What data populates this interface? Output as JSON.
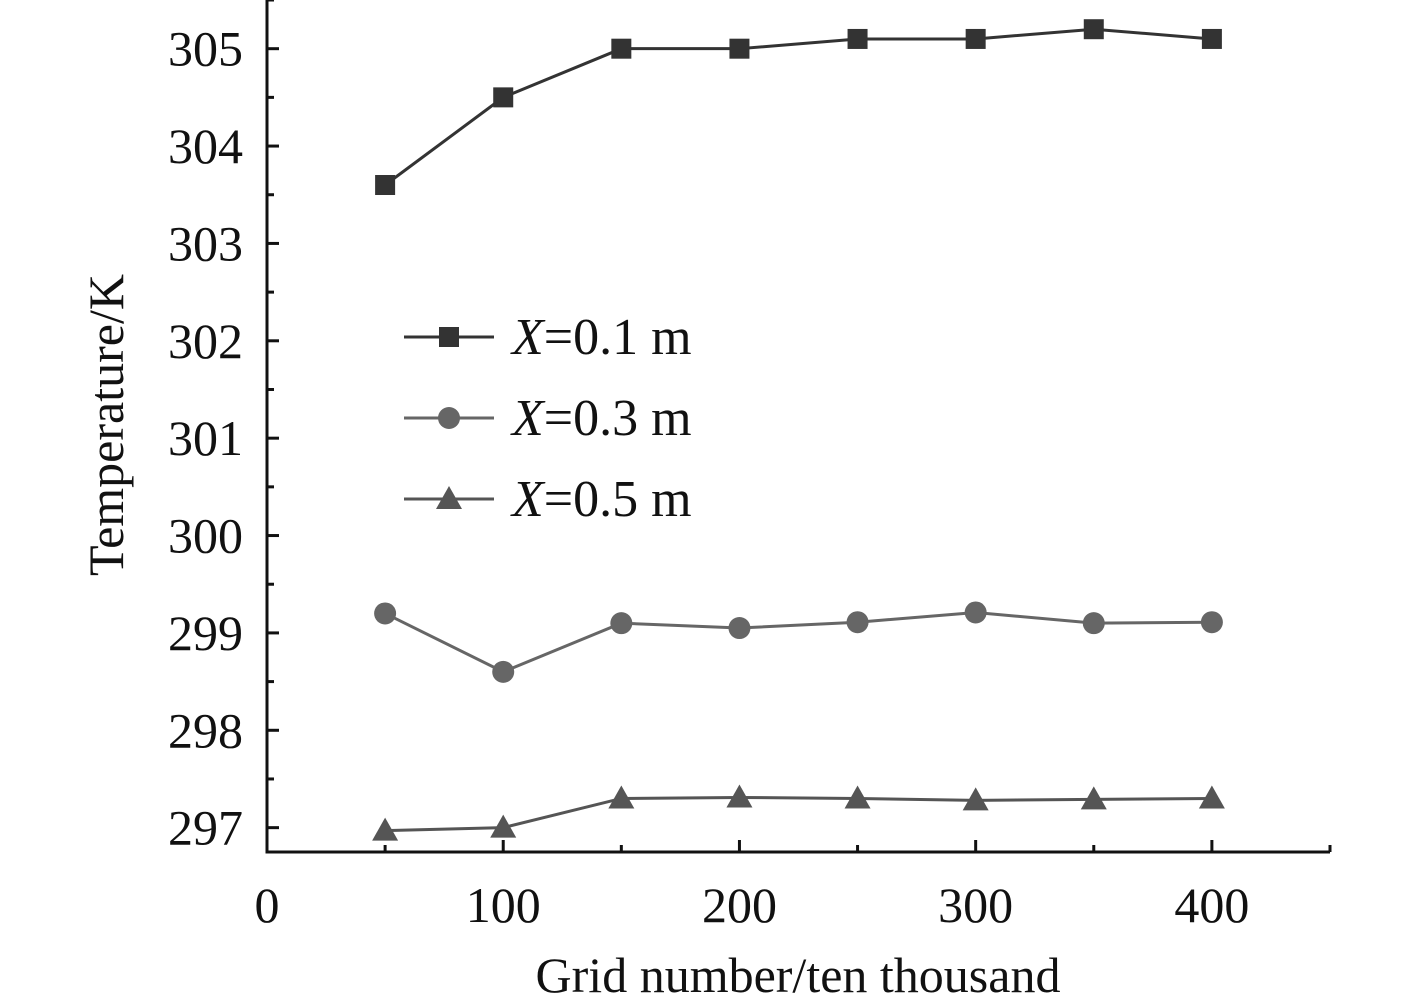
{
  "chart_data": {
    "type": "line",
    "title": "",
    "xlabel": "Grid number/ten thousand",
    "ylabel": "Temperature/K",
    "xlim": [
      0,
      450
    ],
    "ylim": [
      296.75,
      305.5
    ],
    "x_ticks": [
      0,
      100,
      200,
      300,
      400
    ],
    "y_ticks": [
      297,
      298,
      299,
      300,
      301,
      302,
      303,
      304,
      305
    ],
    "x_tick_labels": [
      "0",
      "100",
      "200",
      "300",
      "400"
    ],
    "y_tick_labels": [
      "297",
      "298",
      "299",
      "300",
      "301",
      "302",
      "303",
      "304",
      "305"
    ],
    "grid": false,
    "legend_position": "center-left",
    "x": [
      50,
      100,
      150,
      200,
      250,
      300,
      350,
      400
    ],
    "series": [
      {
        "name": "X=0.1 m",
        "name_var": "X",
        "name_rest": "=0.1 m",
        "marker": "square",
        "color": "#333333",
        "values": [
          303.6,
          304.5,
          305.0,
          305.0,
          305.1,
          305.1,
          305.2,
          305.1
        ]
      },
      {
        "name": "X=0.3 m",
        "name_var": "X",
        "name_rest": "=0.3 m",
        "marker": "circle",
        "color": "#666666",
        "values": [
          299.2,
          298.6,
          299.1,
          299.05,
          299.11,
          299.21,
          299.1,
          299.11
        ]
      },
      {
        "name": "X=0.5 m",
        "name_var": "X",
        "name_rest": "=0.5 m",
        "marker": "triangle",
        "color": "#555555",
        "values": [
          296.97,
          297.0,
          297.3,
          297.31,
          297.3,
          297.28,
          297.29,
          297.3
        ]
      }
    ]
  }
}
